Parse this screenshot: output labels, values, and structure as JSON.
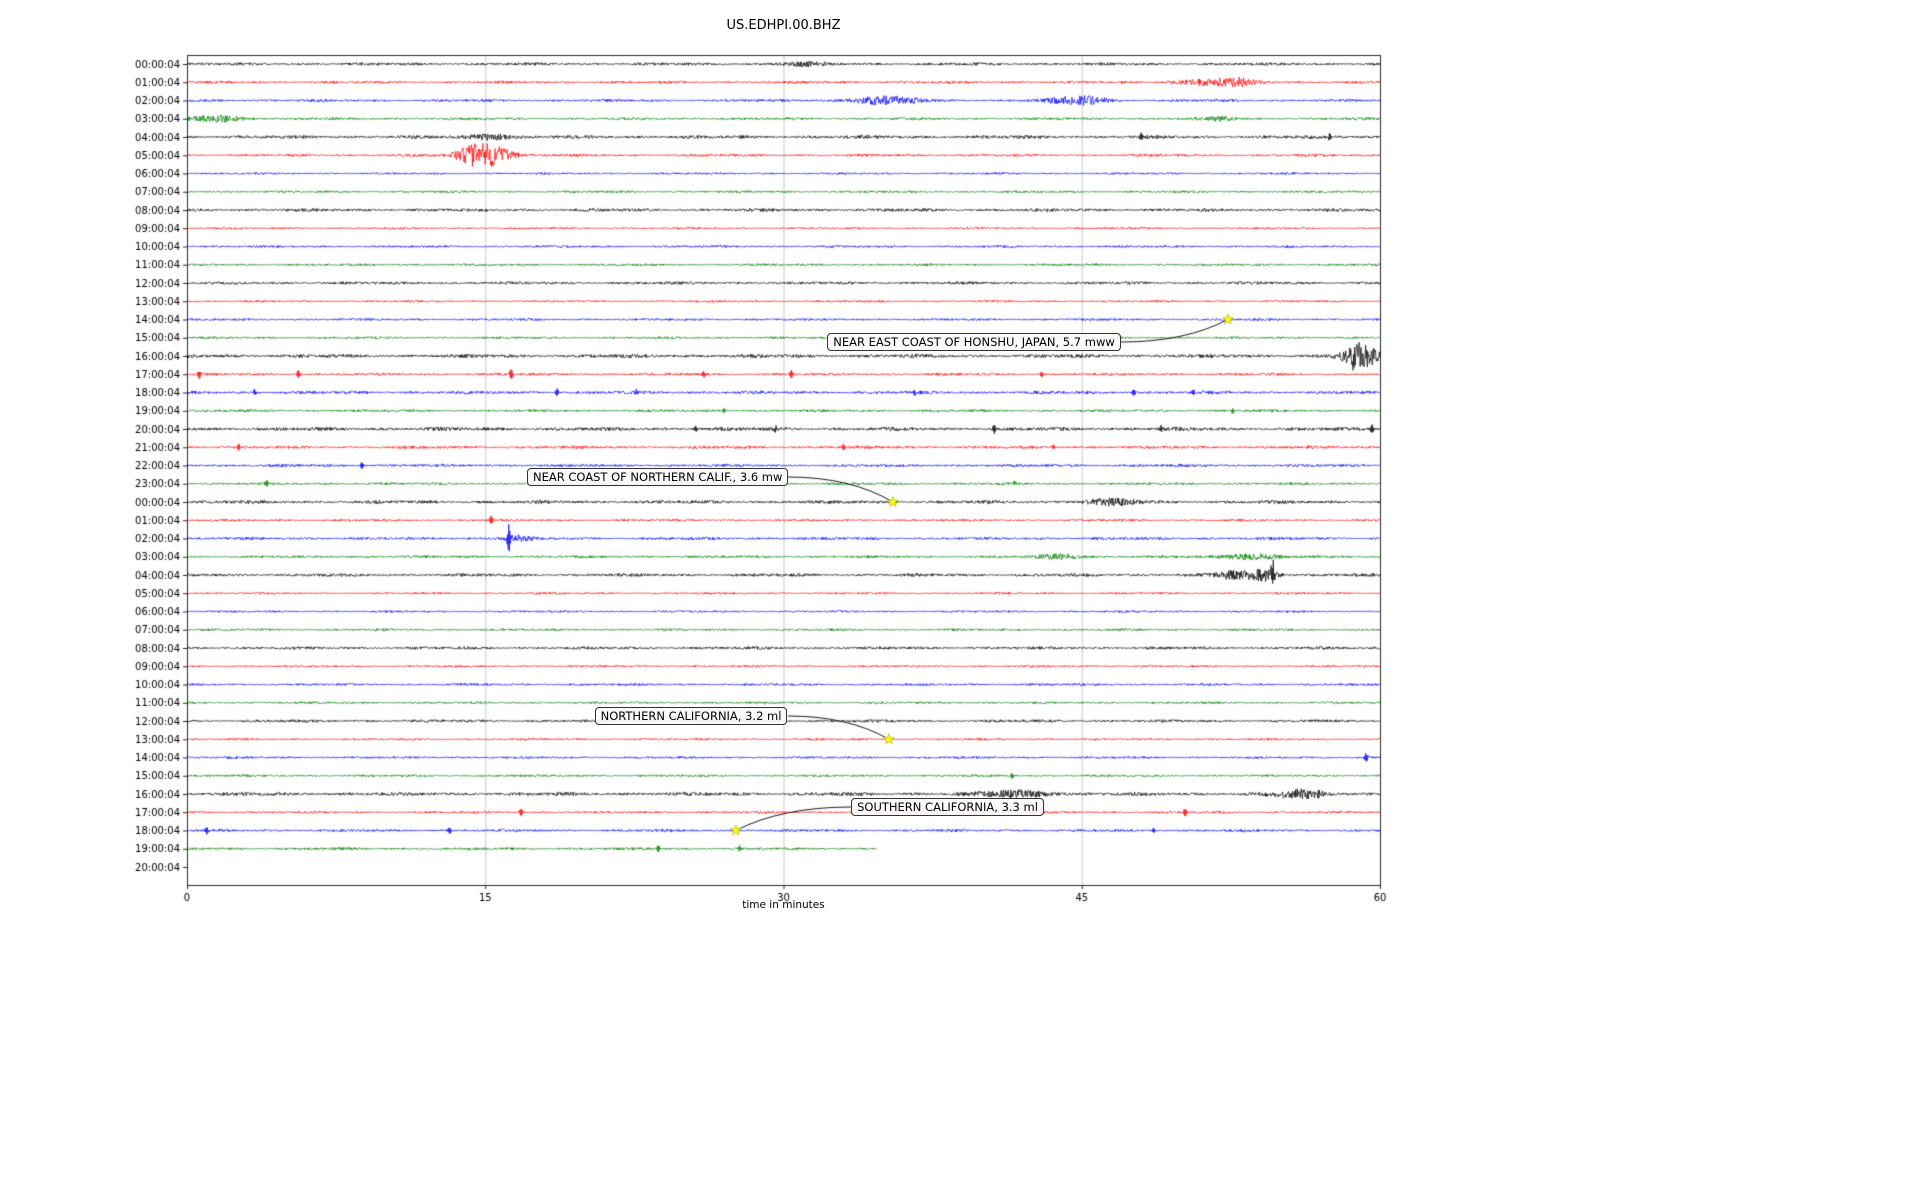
{
  "title": "US.EDHPI.00.BHZ",
  "chart_data": {
    "type": "line",
    "variant": "seismic-helicorder-dayplot",
    "station": "US.EDHPI.00.BHZ",
    "xlabel": "time in minutes",
    "xlim": [
      0,
      60
    ],
    "xticks": [
      0,
      15,
      30,
      45,
      60
    ],
    "grid_minutes": [
      15,
      30,
      45
    ],
    "trace_colors": [
      "#000000",
      "#ff0000",
      "#0000ff",
      "#008000"
    ],
    "grid_color": "#c9c9c9",
    "marker_color": "#ffff00",
    "rows": [
      {
        "label": "00:00:04",
        "noise": 1.1,
        "bursts": [
          [
            31,
            1.5,
            2
          ]
        ]
      },
      {
        "label": "01:00:04",
        "noise": 1.0,
        "bursts": [
          [
            51.5,
            2.5,
            3
          ],
          [
            53,
            1,
            2.5
          ]
        ]
      },
      {
        "label": "02:00:04",
        "noise": 1.0,
        "bursts": [
          [
            34.5,
            2,
            3
          ],
          [
            36,
            1.5,
            2.5
          ],
          [
            44.5,
            2,
            3
          ],
          [
            45.6,
            1,
            2.5
          ]
        ]
      },
      {
        "label": "03:00:04",
        "noise": 1.0,
        "bursts": [
          [
            1.5,
            2,
            3
          ],
          [
            52,
            1,
            1.8
          ]
        ]
      },
      {
        "label": "04:00:04",
        "noise": 1.3,
        "bursts": [
          [
            15.3,
            1.5,
            3
          ]
        ],
        "spikes": [
          [
            48,
            4
          ],
          [
            57.5,
            4
          ]
        ]
      },
      {
        "label": "05:00:04",
        "noise": 1.0,
        "bursts": [
          [
            14.3,
            1.2,
            5
          ],
          [
            15.2,
            1.6,
            10
          ]
        ]
      },
      {
        "label": "06:00:04",
        "noise": 0.8
      },
      {
        "label": "07:00:04",
        "noise": 0.9
      },
      {
        "label": "08:00:04",
        "noise": 1.2
      },
      {
        "label": "09:00:04",
        "noise": 0.8
      },
      {
        "label": "10:00:04",
        "noise": 0.9
      },
      {
        "label": "11:00:04",
        "noise": 0.9
      },
      {
        "label": "12:00:04",
        "noise": 1.1
      },
      {
        "label": "13:00:04",
        "noise": 0.8
      },
      {
        "label": "14:00:04",
        "noise": 0.9
      },
      {
        "label": "15:00:04",
        "noise": 0.9
      },
      {
        "label": "16:00:04",
        "noise": 1.4,
        "bursts": [
          [
            59,
            1.2,
            12
          ]
        ],
        "spikes": [
          [
            58.6,
            6
          ]
        ]
      },
      {
        "label": "17:00:04",
        "noise": 1.0,
        "spikes": [
          [
            0.6,
            4
          ],
          [
            5.6,
            4
          ],
          [
            16.3,
            5
          ],
          [
            26,
            3
          ],
          [
            30.4,
            4
          ],
          [
            43,
            2.5
          ]
        ]
      },
      {
        "label": "18:00:04",
        "noise": 1.2,
        "spikes": [
          [
            3.4,
            3
          ],
          [
            18.6,
            4
          ],
          [
            22.6,
            3.5
          ],
          [
            36.6,
            3
          ],
          [
            47.6,
            3.5
          ],
          [
            50.6,
            3
          ]
        ]
      },
      {
        "label": "19:00:04",
        "noise": 1.0,
        "spikes": [
          [
            27,
            2.5
          ],
          [
            52.6,
            3
          ]
        ]
      },
      {
        "label": "20:00:04",
        "noise": 1.4,
        "spikes": [
          [
            25.6,
            3
          ],
          [
            29.6,
            3.5
          ],
          [
            40.6,
            4
          ],
          [
            49,
            3.5
          ],
          [
            59.6,
            4
          ]
        ]
      },
      {
        "label": "21:00:04",
        "noise": 1.1,
        "spikes": [
          [
            2.6,
            3.5
          ],
          [
            33,
            3
          ],
          [
            43.6,
            2.5
          ]
        ]
      },
      {
        "label": "22:00:04",
        "noise": 1.1,
        "spikes": [
          [
            8.8,
            3.5
          ]
        ]
      },
      {
        "label": "23:00:04",
        "noise": 1.0,
        "spikes": [
          [
            4,
            2.5
          ],
          [
            41.6,
            2.5
          ]
        ]
      },
      {
        "label": "00:00:04",
        "noise": 1.3,
        "bursts": [
          [
            46.5,
            2,
            2.5
          ]
        ]
      },
      {
        "label": "01:00:04",
        "noise": 0.9,
        "spikes": [
          [
            15.3,
            4
          ]
        ]
      },
      {
        "label": "02:00:04",
        "noise": 1.1,
        "bursts": [
          [
            16.5,
            1,
            3
          ]
        ],
        "spikes": [
          [
            16.2,
            15
          ]
        ]
      },
      {
        "label": "03:00:04",
        "noise": 1.0,
        "bursts": [
          [
            44,
            1.5,
            2.5
          ],
          [
            53.5,
            2,
            3
          ]
        ]
      },
      {
        "label": "04:00:04",
        "noise": 1.2,
        "bursts": [
          [
            52.8,
            1.5,
            4
          ],
          [
            54.3,
            1,
            5
          ]
        ],
        "spikes": [
          [
            54.6,
            14
          ]
        ]
      },
      {
        "label": "05:00:04",
        "noise": 0.8
      },
      {
        "label": "06:00:04",
        "noise": 0.8
      },
      {
        "label": "07:00:04",
        "noise": 0.9
      },
      {
        "label": "08:00:04",
        "noise": 1.1
      },
      {
        "label": "09:00:04",
        "noise": 0.8
      },
      {
        "label": "10:00:04",
        "noise": 0.9
      },
      {
        "label": "11:00:04",
        "noise": 0.9
      },
      {
        "label": "12:00:04",
        "noise": 1.1
      },
      {
        "label": "13:00:04",
        "noise": 0.8
      },
      {
        "label": "14:00:04",
        "noise": 0.9,
        "spikes": [
          [
            59.3,
            4
          ]
        ]
      },
      {
        "label": "15:00:04",
        "noise": 0.9,
        "spikes": [
          [
            41.5,
            2.5
          ]
        ]
      },
      {
        "label": "16:00:04",
        "noise": 1.4,
        "bursts": [
          [
            41.8,
            2.5,
            3
          ],
          [
            56,
            2,
            4
          ]
        ]
      },
      {
        "label": "17:00:04",
        "noise": 0.9,
        "spikes": [
          [
            16.8,
            3.5
          ],
          [
            39.6,
            3
          ],
          [
            50.2,
            4
          ]
        ]
      },
      {
        "label": "18:00:04",
        "noise": 1.0,
        "spikes": [
          [
            1,
            3.5
          ],
          [
            13.2,
            3.5
          ],
          [
            48.6,
            2.5
          ]
        ]
      },
      {
        "label": "19:00:04",
        "noise": 1.0,
        "len": 34.7,
        "spikes": [
          [
            23.7,
            3
          ],
          [
            27.8,
            2.5
          ]
        ]
      },
      {
        "label": "20:00:04",
        "noise": 0,
        "len": 0
      }
    ],
    "events": [
      {
        "label": "NEAR EAST COAST OF HONSHU, JAPAN, 5.7 mww",
        "row": 14,
        "minute": 52.35,
        "label_minute": 32.2,
        "label_row": 15.25
      },
      {
        "label": "NEAR COAST OF NORTHERN CALIF., 3.6 mw",
        "row": 24,
        "minute": 35.5,
        "label_minute": 17.1,
        "label_row": 22.65
      },
      {
        "label": "NORTHERN CALIFORNIA, 3.2 ml",
        "row": 37,
        "minute": 35.3,
        "label_minute": 20.5,
        "label_row": 35.7
      },
      {
        "label": "SOUTHERN CALIFORNIA, 3.3 ml",
        "row": 42,
        "minute": 27.6,
        "label_minute": 33.4,
        "label_row": 40.7
      }
    ]
  }
}
